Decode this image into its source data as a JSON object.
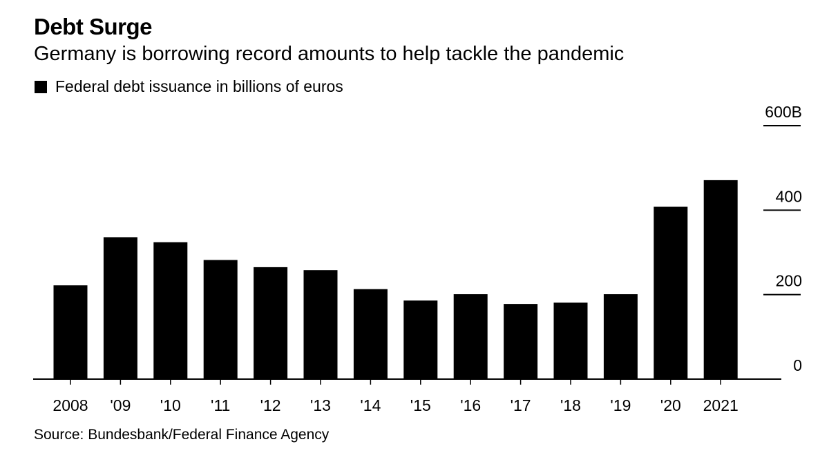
{
  "title": "Debt Surge",
  "subtitle": "Germany is borrowing record amounts to help tackle the pandemic",
  "legend": "Federal debt issuance in billions of euros",
  "source": "Source: Bundesbank/Federal Finance Agency",
  "colors": {
    "bar": "#000000",
    "axis": "#000000",
    "background": "#ffffff"
  },
  "chart_data": {
    "type": "bar",
    "categories": [
      "2008",
      "'09",
      "'10",
      "'11",
      "'12",
      "'13",
      "'14",
      "'15",
      "'16",
      "'17",
      "'18",
      "'19",
      "'20",
      "2021"
    ],
    "series": [
      {
        "name": "Federal debt issuance in billions of euros",
        "values": [
          222,
          336,
          324,
          282,
          265,
          258,
          213,
          186,
          201,
          178,
          181,
          201,
          408,
          471
        ]
      }
    ],
    "ylim": [
      0,
      600
    ],
    "yticks": [
      0,
      200,
      400,
      600
    ],
    "ytick_labels": [
      "0",
      "200",
      "400",
      "600B"
    ],
    "y_axis_side": "right",
    "xlabel": "",
    "ylabel": "",
    "grid": false,
    "legend_position": "top-left"
  }
}
